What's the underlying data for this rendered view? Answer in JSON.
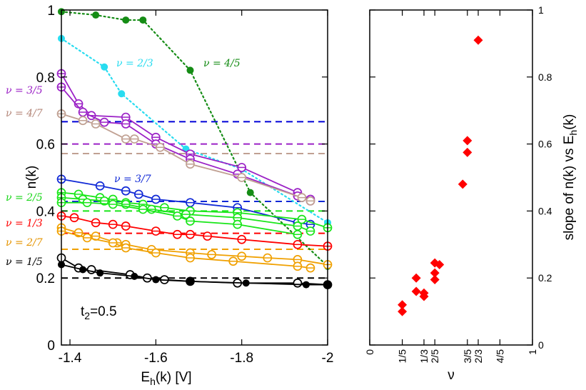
{
  "chart_data": [
    {
      "type": "line",
      "xlabel": "E_h(k) [V]",
      "ylabel": "n(k)",
      "xlim": [
        -1.38,
        -2.0
      ],
      "ylim": [
        0,
        1
      ],
      "x_ticks": [
        -1.4,
        -1.6,
        -1.8,
        -2.0
      ],
      "x_tick_labels": [
        "-1.4",
        "-1.6",
        "-1.8",
        "-2"
      ],
      "y_ticks": [
        0,
        0.2,
        0.4,
        0.6,
        0.8,
        1.0
      ],
      "y_tick_labels": [
        "0",
        "0.2",
        "0.4",
        "0.6",
        "0.8",
        "1"
      ],
      "annotation": "t2=0.5",
      "reference_lines": [
        {
          "value": 0.6667,
          "color": "#0000d8"
        },
        {
          "value": 0.6,
          "color": "#9b21c6"
        },
        {
          "value": 0.5714,
          "color": "#c0a092"
        },
        {
          "value": 0.4286,
          "color": "#1029d6"
        },
        {
          "value": 0.4,
          "color": "#19e619"
        },
        {
          "value": 0.3333,
          "color": "#ff0000"
        },
        {
          "value": 0.2857,
          "color": "#f0a000"
        },
        {
          "value": 0.2,
          "color": "#000000"
        }
      ],
      "labels": [
        {
          "text": "ν = 3/5",
          "color": "#9b21c6"
        },
        {
          "text": "ν = 4/7",
          "color": "#b4877a"
        },
        {
          "text": "ν = 2/5",
          "color": "#19d619"
        },
        {
          "text": "ν = 1/3",
          "color": "#ff0000"
        },
        {
          "text": "ν = 2/7",
          "color": "#e59400"
        },
        {
          "text": "ν = 1/5",
          "color": "#000000"
        },
        {
          "text": "ν = 2/3",
          "color": "#28dcf0"
        },
        {
          "text": "ν = 4/5",
          "color": "#158c15"
        },
        {
          "text": "ν = 3/7",
          "color": "#1029d6"
        }
      ],
      "series": [
        {
          "name": "ν = 4/5",
          "color": "#158c15",
          "style": "dotted",
          "marker": "filled",
          "x": [
            -1.38,
            -1.46,
            -1.53,
            -1.57,
            -1.68,
            -1.82,
            -2.0
          ],
          "y": [
            0.995,
            0.985,
            0.97,
            0.97,
            0.82,
            0.455,
            0.235
          ]
        },
        {
          "name": "ν = 2/3",
          "color": "#28dcf0",
          "style": "dotted",
          "marker": "filled",
          "x": [
            -1.38,
            -1.48,
            -1.52,
            -1.67,
            -1.8,
            -2.0
          ],
          "y": [
            0.915,
            0.83,
            0.75,
            0.585,
            0.525,
            0.365
          ]
        },
        {
          "name": "ν = 3/5 (a)",
          "color": "#9b21c6",
          "style": "solid",
          "marker": "slashed",
          "x": [
            -1.38,
            -1.42,
            -1.45,
            -1.53,
            -1.6,
            -1.68,
            -1.8,
            -1.93,
            -1.96
          ],
          "y": [
            0.81,
            0.72,
            0.685,
            0.68,
            0.62,
            0.57,
            0.53,
            0.455,
            0.435
          ]
        },
        {
          "name": "ν = 3/5 (b)",
          "color": "#9b21c6",
          "style": "solid",
          "marker": "slashed",
          "x": [
            -1.38,
            -1.43,
            -1.48,
            -1.53,
            -1.6,
            -1.68,
            -1.79,
            -1.93,
            -1.96
          ],
          "y": [
            0.77,
            0.695,
            0.665,
            0.66,
            0.6,
            0.555,
            0.51,
            0.445,
            0.43
          ]
        },
        {
          "name": "ν = 4/7",
          "color": "#c0a092",
          "style": "solid",
          "marker": "slashed",
          "x": [
            -1.38,
            -1.43,
            -1.46,
            -1.53,
            -1.55,
            -1.61,
            -1.68,
            -1.8,
            -1.94,
            -1.96
          ],
          "y": [
            0.69,
            0.67,
            0.66,
            0.615,
            0.615,
            0.59,
            0.54,
            0.5,
            0.44,
            0.43
          ]
        },
        {
          "name": "ν = 3/7",
          "color": "#1029d6",
          "style": "solid",
          "marker": "slashed",
          "x": [
            -1.38,
            -1.47,
            -1.53,
            -1.56,
            -1.6,
            -1.68,
            -1.79,
            -1.93,
            -1.96
          ],
          "y": [
            0.495,
            0.475,
            0.46,
            0.45,
            0.435,
            0.425,
            0.41,
            0.365,
            0.36
          ]
        },
        {
          "name": "ν = 2/5 (a)",
          "color": "#19e619",
          "style": "solid",
          "marker": "slashed",
          "x": [
            -1.38,
            -1.42,
            -1.47,
            -1.5,
            -1.53,
            -1.57,
            -1.62,
            -1.68,
            -1.79,
            -1.94,
            -2.0
          ],
          "y": [
            0.455,
            0.45,
            0.44,
            0.435,
            0.425,
            0.42,
            0.41,
            0.4,
            0.395,
            0.375,
            0.35
          ]
        },
        {
          "name": "ν = 2/5 (b)",
          "color": "#19e619",
          "style": "solid",
          "marker": "slashed",
          "x": [
            -1.38,
            -1.43,
            -1.48,
            -1.53,
            -1.59,
            -1.67,
            -1.79,
            -1.93,
            -1.96
          ],
          "y": [
            0.44,
            0.435,
            0.43,
            0.42,
            0.405,
            0.39,
            0.38,
            0.355,
            0.34
          ]
        },
        {
          "name": "ν = 2/5 (c)",
          "color": "#19e619",
          "style": "solid",
          "marker": "slashed",
          "x": [
            -1.38,
            -1.44,
            -1.5,
            -1.57,
            -1.65,
            -1.68,
            -1.79,
            -1.93
          ],
          "y": [
            0.425,
            0.425,
            0.42,
            0.405,
            0.385,
            0.37,
            0.36,
            0.33
          ]
        },
        {
          "name": "ν = 1/3",
          "color": "#ff0000",
          "style": "solid",
          "marker": "slashed",
          "x": [
            -1.38,
            -1.41,
            -1.46,
            -1.5,
            -1.53,
            -1.6,
            -1.65,
            -1.68,
            -1.72,
            -1.8,
            -1.93,
            -2.0
          ],
          "y": [
            0.385,
            0.38,
            0.365,
            0.36,
            0.355,
            0.34,
            0.33,
            0.33,
            0.325,
            0.315,
            0.3,
            0.295
          ]
        },
        {
          "name": "ν = 2/7 (a)",
          "color": "#f0a000",
          "style": "solid",
          "marker": "slashed",
          "x": [
            -1.38,
            -1.42,
            -1.46,
            -1.51,
            -1.53,
            -1.59,
            -1.68,
            -1.73,
            -1.8,
            -1.86,
            -1.93,
            -2.0
          ],
          "y": [
            0.35,
            0.335,
            0.325,
            0.305,
            0.3,
            0.285,
            0.275,
            0.27,
            0.265,
            0.26,
            0.255,
            0.24
          ]
        },
        {
          "name": "ν = 2/7 (b)",
          "color": "#f0a000",
          "style": "solid",
          "marker": "slashed",
          "x": [
            -1.38,
            -1.44,
            -1.5,
            -1.53,
            -1.6,
            -1.68,
            -1.78,
            -1.93,
            -1.96
          ],
          "y": [
            0.34,
            0.32,
            0.305,
            0.29,
            0.275,
            0.26,
            0.25,
            0.235,
            0.23
          ]
        },
        {
          "name": "ν = 1/5 (a)",
          "color": "#000000",
          "style": "solid",
          "marker": "open",
          "x": [
            -1.38,
            -1.42,
            -1.45,
            -1.54,
            -1.58,
            -1.62,
            -1.68,
            -1.79,
            -1.93,
            -2.0
          ],
          "y": [
            0.26,
            0.23,
            0.225,
            0.21,
            0.2,
            0.195,
            0.19,
            0.185,
            0.185,
            0.18
          ]
        },
        {
          "name": "ν = 1/5 (b)",
          "color": "#000000",
          "style": "solid",
          "marker": "filled",
          "x": [
            -1.38,
            -1.43,
            -1.47,
            -1.55,
            -1.6,
            -1.68,
            -1.81,
            -1.95,
            -2.0
          ],
          "y": [
            0.24,
            0.225,
            0.215,
            0.205,
            0.195,
            0.19,
            0.185,
            0.18,
            0.18
          ]
        }
      ]
    },
    {
      "type": "scatter",
      "xlabel": "ν",
      "ylabel": "slope of  n(k) vs E_h(k)",
      "xlim": [
        0,
        1
      ],
      "ylim": [
        0,
        1
      ],
      "x_ticks": [
        0,
        0.2,
        0.3333,
        0.4,
        0.6,
        0.6667,
        0.8,
        1.0
      ],
      "x_tick_labels": [
        "0",
        "1/5",
        "1/3",
        "2/5",
        "3/5",
        "2/3",
        "4/5",
        "1"
      ],
      "y_ticks": [
        0,
        0.2,
        0.4,
        0.6,
        0.8,
        1.0
      ],
      "y_tick_labels": [
        "0",
        "0.2",
        "0.4",
        "0.6",
        "0.8",
        "1"
      ],
      "marker": "diamond",
      "color": "#ff0000",
      "x": [
        0.2,
        0.2,
        0.2857,
        0.2857,
        0.3333,
        0.3333,
        0.4,
        0.4,
        0.4,
        0.4286,
        0.5714,
        0.6,
        0.6,
        0.6667
      ],
      "y": [
        0.1,
        0.12,
        0.2,
        0.16,
        0.145,
        0.155,
        0.245,
        0.215,
        0.195,
        0.24,
        0.48,
        0.61,
        0.575,
        0.91
      ]
    }
  ]
}
